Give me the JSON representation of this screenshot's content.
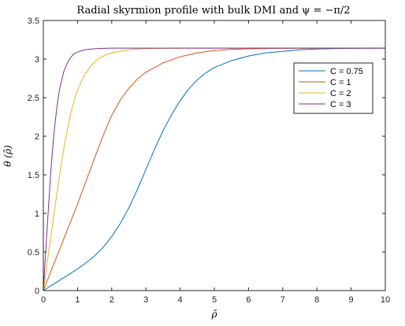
{
  "chart_data": {
    "type": "line",
    "title": "Radial skyrmion profile with bulk DMI and ψ = −π/2",
    "xlabel": "ρ̃",
    "ylabel": "θ (ρ̃)",
    "xlim": [
      0,
      10
    ],
    "ylim": [
      0,
      3.5
    ],
    "xticks": [
      0,
      1,
      2,
      3,
      4,
      5,
      6,
      7,
      8,
      9,
      10
    ],
    "yticks": [
      0,
      0.5,
      1,
      1.5,
      2,
      2.5,
      3,
      3.5
    ],
    "xtick_labels": [
      "0",
      "1",
      "2",
      "3",
      "4",
      "5",
      "6",
      "7",
      "8",
      "9",
      "10"
    ],
    "ytick_labels": [
      "0",
      "0.5",
      "1",
      "1.5",
      "2",
      "2.5",
      "3",
      "3.5"
    ],
    "grid": false,
    "legend_position": "top-right",
    "series": [
      {
        "name": "C = 0.75",
        "color": "#0072BD",
        "x": [
          0,
          0.25,
          0.5,
          0.75,
          1,
          1.25,
          1.5,
          1.75,
          2,
          2.25,
          2.5,
          2.75,
          3,
          3.25,
          3.5,
          3.75,
          4,
          4.25,
          4.5,
          4.75,
          5,
          5.5,
          6,
          6.5,
          7,
          7.5,
          8,
          8.5,
          9,
          9.5,
          10
        ],
        "values": [
          0,
          0.07,
          0.14,
          0.21,
          0.28,
          0.36,
          0.45,
          0.56,
          0.7,
          0.87,
          1.07,
          1.31,
          1.57,
          1.83,
          2.07,
          2.28,
          2.46,
          2.61,
          2.73,
          2.82,
          2.89,
          2.98,
          3.04,
          3.08,
          3.1,
          3.12,
          3.13,
          3.135,
          3.138,
          3.14,
          3.141
        ]
      },
      {
        "name": "C = 1",
        "color": "#D95319",
        "x": [
          0,
          0.25,
          0.5,
          0.75,
          1,
          1.25,
          1.5,
          1.75,
          2,
          2.25,
          2.5,
          2.75,
          3,
          3.5,
          4,
          4.5,
          5,
          5.5,
          6,
          7,
          8,
          9,
          10
        ],
        "values": [
          0,
          0.28,
          0.56,
          0.84,
          1.12,
          1.42,
          1.72,
          2.01,
          2.27,
          2.47,
          2.62,
          2.74,
          2.83,
          2.95,
          3.03,
          3.08,
          3.11,
          3.125,
          3.133,
          3.139,
          3.141,
          3.1415,
          3.1416
        ]
      },
      {
        "name": "C = 2",
        "color": "#EDB120",
        "x": [
          0,
          0.1,
          0.2,
          0.3,
          0.4,
          0.5,
          0.6,
          0.7,
          0.8,
          0.9,
          1,
          1.2,
          1.4,
          1.6,
          1.8,
          2,
          2.5,
          3,
          3.5,
          4,
          5,
          6,
          7,
          8,
          9,
          10
        ],
        "values": [
          0,
          0.32,
          0.64,
          0.96,
          1.27,
          1.57,
          1.84,
          2.08,
          2.29,
          2.46,
          2.6,
          2.79,
          2.92,
          3.0,
          3.05,
          3.08,
          3.12,
          3.135,
          3.139,
          3.141,
          3.1415,
          3.1416,
          3.1416,
          3.1416,
          3.1416,
          3.1416
        ]
      },
      {
        "name": "C = 3",
        "color": "#7E2F8E",
        "x": [
          0,
          0.05,
          0.1,
          0.15,
          0.2,
          0.25,
          0.3,
          0.35,
          0.4,
          0.45,
          0.5,
          0.6,
          0.7,
          0.8,
          0.9,
          1,
          1.2,
          1.4,
          1.6,
          2,
          2.5,
          3,
          4,
          5,
          6,
          7,
          8,
          9,
          10
        ],
        "values": [
          0,
          0.37,
          0.73,
          1.08,
          1.42,
          1.72,
          1.98,
          2.2,
          2.39,
          2.54,
          2.66,
          2.84,
          2.95,
          3.02,
          3.07,
          3.09,
          3.12,
          3.13,
          3.137,
          3.141,
          3.1415,
          3.1416,
          3.1416,
          3.1416,
          3.1416,
          3.1416,
          3.1416,
          3.1416,
          3.1416
        ]
      }
    ]
  }
}
